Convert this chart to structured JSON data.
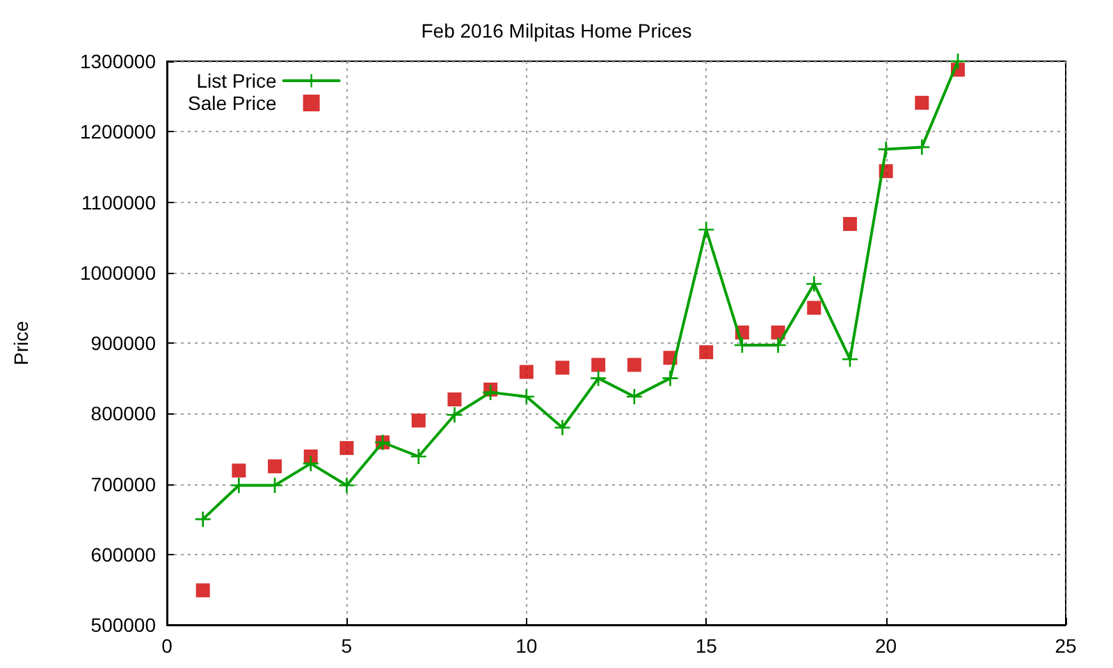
{
  "chart_data": {
    "type": "line",
    "title": "Feb 2016 Milpitas Home Prices",
    "ylabel": "Price",
    "x": [
      1,
      2,
      3,
      4,
      5,
      6,
      7,
      8,
      9,
      10,
      11,
      12,
      13,
      14,
      15,
      16,
      17,
      18,
      19,
      20,
      21,
      22
    ],
    "series": [
      {
        "name": "List Price",
        "type": "line",
        "color": "#00a000",
        "marker": "cross",
        "line_style": "solid",
        "values": [
          650000,
          698000,
          698000,
          729000,
          698000,
          759000,
          739000,
          798000,
          830000,
          824000,
          780000,
          850000,
          824000,
          850000,
          1061000,
          897000,
          897000,
          984000,
          877000,
          1175000,
          1178000,
          1300000
        ]
      },
      {
        "name": "Sale Price",
        "type": "scatter",
        "color": "#d00000",
        "marker": "square",
        "values": [
          549000,
          719000,
          725000,
          739000,
          751000,
          759000,
          790000,
          820000,
          834000,
          859000,
          865000,
          869000,
          869000,
          879000,
          887000,
          915000,
          915000,
          950000,
          1069000,
          1144000,
          1241000,
          1288000
        ]
      }
    ],
    "xlim": [
      0,
      25
    ],
    "xticks": [
      0,
      5,
      10,
      15,
      20,
      25
    ],
    "ylim": [
      500000,
      1300000
    ],
    "yticks": [
      500000,
      600000,
      700000,
      800000,
      900000,
      1000000,
      1100000,
      1200000,
      1300000
    ],
    "grid": true,
    "legend": "top left"
  }
}
